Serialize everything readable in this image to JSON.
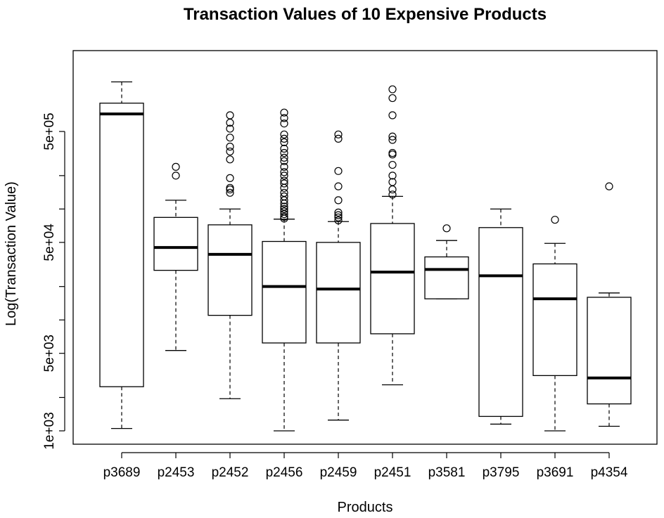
{
  "chart_data": {
    "type": "box",
    "title": "Transaction Values of 10 Expensive Products",
    "xlabel": "Products",
    "ylabel": "Log(Transaction Value)",
    "y_scale": "log",
    "ylim": [
      1000,
      2000000
    ],
    "y_ticks": [
      1000,
      5000,
      50000,
      500000
    ],
    "y_tick_labels": [
      "1e+03",
      "5e+03",
      "5e+04",
      "5e+05"
    ],
    "grid": false,
    "legend": "none",
    "categories": [
      "p3689",
      "p2453",
      "p2452",
      "p2456",
      "p2459",
      "p2451",
      "p3581",
      "p3795",
      "p3691",
      "p4354"
    ],
    "boxes": [
      {
        "name": "p3689",
        "whisker_low": 1050,
        "q1": 2500,
        "median": 720000,
        "q3": 900000,
        "whisker_high": 1400000,
        "outliers": []
      },
      {
        "name": "p2453",
        "whisker_low": 5300,
        "q1": 28000,
        "median": 45000,
        "q3": 84000,
        "whisker_high": 120000,
        "outliers": [
          200000,
          240000
        ]
      },
      {
        "name": "p2452",
        "whisker_low": 1950,
        "q1": 11000,
        "median": 39000,
        "q3": 72000,
        "whisker_high": 100000,
        "outliers": [
          140000,
          150000,
          155000,
          190000,
          280000,
          330000,
          365000,
          440000,
          530000,
          600000,
          700000
        ]
      },
      {
        "name": "p2456",
        "whisker_low": 1000,
        "q1": 6200,
        "median": 20000,
        "q3": 51000,
        "whisker_high": 81000,
        "outliers": [
          82000,
          85000,
          90000,
          95000,
          100000,
          105000,
          112000,
          120000,
          130000,
          140000,
          155000,
          170000,
          180000,
          200000,
          215000,
          240000,
          270000,
          290000,
          320000,
          350000,
          400000,
          430000,
          470000,
          590000,
          660000,
          740000
        ]
      },
      {
        "name": "p2459",
        "whisker_low": 1250,
        "q1": 6200,
        "median": 19000,
        "q3": 50000,
        "whisker_high": 77000,
        "outliers": [
          79000,
          84000,
          88000,
          93000,
          120000,
          160000,
          220000,
          430000,
          470000
        ]
      },
      {
        "name": "p2451",
        "whisker_low": 2600,
        "q1": 7500,
        "median": 27000,
        "q3": 74000,
        "whisker_high": 130000,
        "outliers": [
          135000,
          150000,
          175000,
          200000,
          250000,
          310000,
          320000,
          420000,
          450000,
          700000,
          1000000,
          1200000
        ]
      },
      {
        "name": "p3581",
        "whisker_low": 15500,
        "q1": 15500,
        "median": 28500,
        "q3": 37000,
        "whisker_high": 52000,
        "outliers": [
          67000
        ]
      },
      {
        "name": "p3795",
        "whisker_low": 1150,
        "q1": 1350,
        "median": 25000,
        "q3": 68000,
        "whisker_high": 100000,
        "outliers": []
      },
      {
        "name": "p3691",
        "whisker_low": 1000,
        "q1": 3150,
        "median": 15500,
        "q3": 32000,
        "whisker_high": 49000,
        "outliers": [
          80000
        ]
      },
      {
        "name": "p4354",
        "whisker_low": 1100,
        "q1": 1750,
        "median": 3000,
        "q3": 16000,
        "whisker_high": 17500,
        "outliers": [
          160000
        ]
      }
    ]
  }
}
